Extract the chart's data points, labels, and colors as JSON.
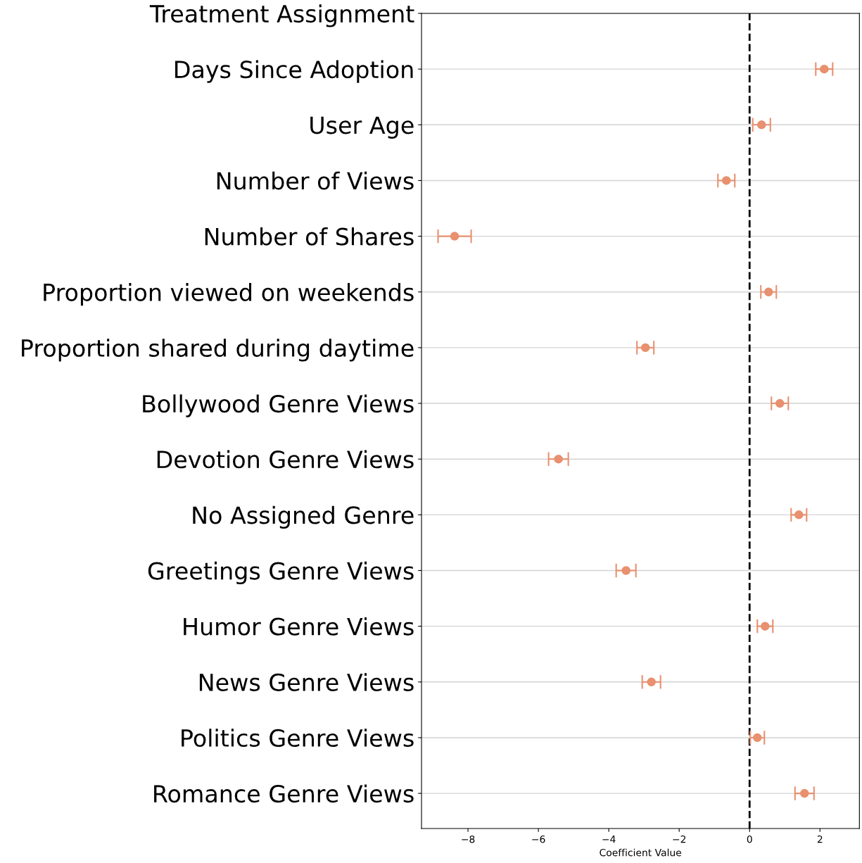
{
  "chart_data": {
    "type": "scatter",
    "orientation": "horizontal",
    "xlabel": "Coefficient Value",
    "categories": [
      "Treatment Assignment",
      "Days Since Adoption",
      "User Age",
      "Number of Views",
      "Number of Shares",
      "Proportion viewed on weekends",
      "Proportion shared during daytime",
      "Bollywood Genre Views",
      "Devotion Genre Views",
      "No Assigned Genre",
      "Greetings Genre Views",
      "Humor Genre Views",
      "News Genre Views",
      "Politics Genre Views",
      "Romance Genre Views"
    ],
    "series": [
      {
        "color": "#e8906f",
        "values": [
          null,
          2.12,
          0.34,
          -0.66,
          -8.38,
          0.54,
          -2.96,
          0.86,
          -5.43,
          1.4,
          -3.51,
          0.44,
          -2.79,
          0.22,
          1.56
        ],
        "errors": [
          null,
          0.24,
          0.25,
          0.24,
          0.47,
          0.22,
          0.24,
          0.24,
          0.28,
          0.22,
          0.28,
          0.22,
          0.26,
          0.2,
          0.27
        ]
      }
    ],
    "xlim": [
      -9.32,
      3.12
    ],
    "xticks": [
      {
        "value": -8,
        "label": "−8"
      },
      {
        "value": -6,
        "label": "−6"
      },
      {
        "value": -4,
        "label": "−4"
      },
      {
        "value": -2,
        "label": "−2"
      },
      0,
      2
    ],
    "ref_lines": [
      {
        "axis": "x",
        "value": 0,
        "color": "#000000",
        "line_style": "dashed"
      }
    ],
    "grid": "y",
    "marker": "circle"
  }
}
